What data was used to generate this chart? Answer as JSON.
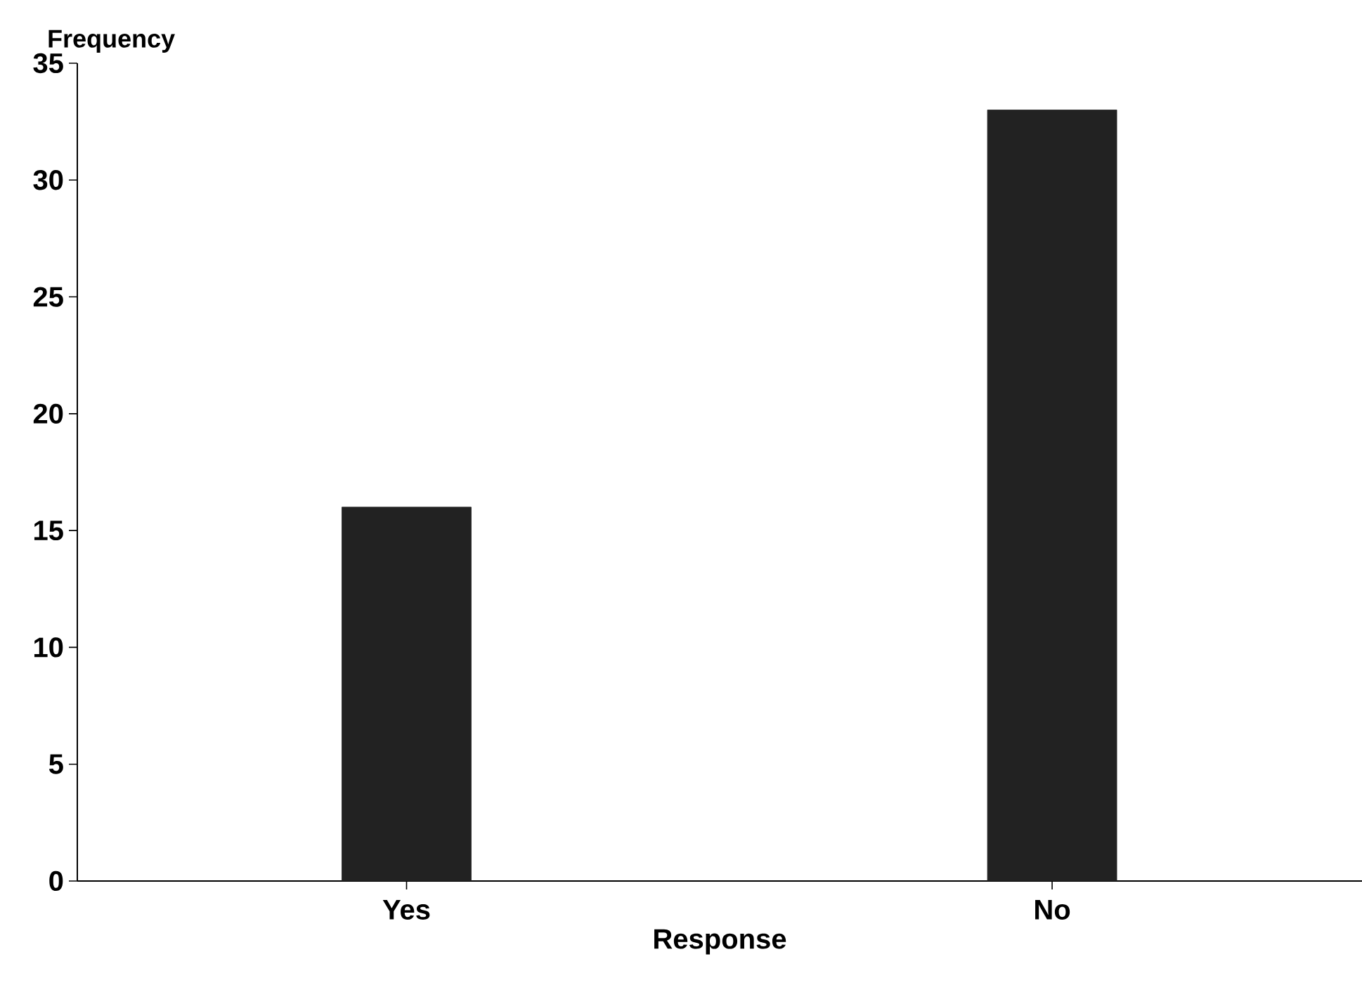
{
  "chart_data": {
    "type": "bar",
    "xlabel": "Response",
    "ylabel": "Frequency",
    "categories": [
      "Yes",
      "No"
    ],
    "values": [
      16,
      33
    ],
    "color": "#222222",
    "ylim": [
      0,
      35
    ],
    "yticks": [
      0,
      5,
      10,
      15,
      20,
      25,
      30,
      35
    ],
    "grid": false
  }
}
